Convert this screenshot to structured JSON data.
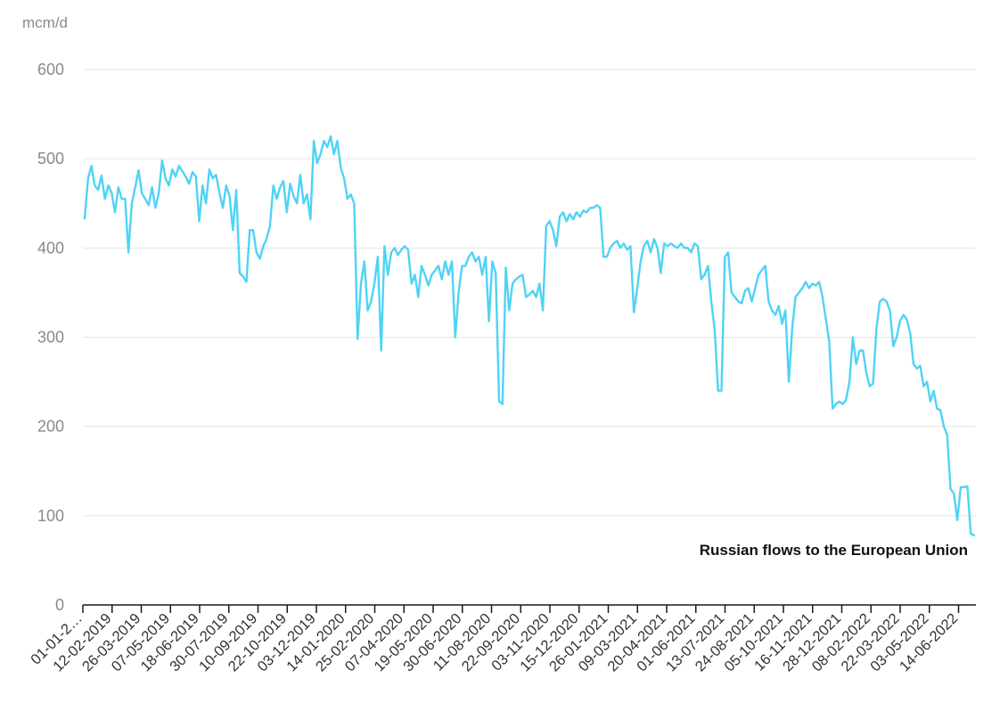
{
  "chart_data": {
    "type": "line",
    "ylabel": "mcm/d",
    "ylim": [
      0,
      600
    ],
    "yticks": [
      0,
      100,
      200,
      300,
      400,
      500,
      600
    ],
    "xticks": [
      "01-01-2…",
      "12-02-2019",
      "26-03-2019",
      "07-05-2019",
      "18-06-2019",
      "30-07-2019",
      "10-09-2019",
      "22-10-2019",
      "03-12-2019",
      "14-01-2020",
      "25-02-2020",
      "07-04-2020",
      "19-05-2020",
      "30-06-2020",
      "11-08-2020",
      "22-09-2020",
      "03-11-2020",
      "15-12-2020",
      "26-01-2021",
      "09-03-2021",
      "20-04-2021",
      "01-06-2021",
      "13-07-2021",
      "24-08-2021",
      "05-10-2021",
      "16-11-2021",
      "28-12-2021",
      "08-02-2022",
      "22-03-2022",
      "03-05-2022",
      "14-06-2022"
    ],
    "grid": true,
    "line_color": "#4fd3f5",
    "series": [
      {
        "name": "Russian flows to the European Union",
        "x_start": "2019-01-01",
        "x_end": "2022-07-25",
        "values": [
          433,
          478,
          492,
          470,
          465,
          481,
          455,
          470,
          462,
          440,
          468,
          455,
          455,
          395,
          450,
          468,
          487,
          461,
          455,
          448,
          468,
          445,
          462,
          498,
          478,
          470,
          488,
          480,
          492,
          486,
          480,
          472,
          485,
          480,
          430,
          470,
          450,
          488,
          478,
          482,
          462,
          445,
          470,
          458,
          420,
          465,
          372,
          368,
          362,
          420,
          420,
          395,
          388,
          402,
          410,
          425,
          470,
          455,
          468,
          475,
          440,
          472,
          458,
          450,
          482,
          450,
          460,
          432,
          520,
          495,
          505,
          520,
          513,
          525,
          505,
          520,
          490,
          478,
          455,
          460,
          450,
          298,
          360,
          385,
          330,
          340,
          360,
          390,
          285,
          402,
          370,
          395,
          400,
          392,
          398,
          402,
          398,
          360,
          370,
          345,
          380,
          370,
          358,
          370,
          375,
          380,
          365,
          385,
          370,
          385,
          300,
          350,
          380,
          380,
          390,
          395,
          385,
          390,
          370,
          390,
          318,
          385,
          372,
          228,
          225,
          378,
          330,
          360,
          365,
          368,
          370,
          345,
          348,
          352,
          345,
          360,
          330,
          425,
          430,
          420,
          402,
          435,
          440,
          430,
          438,
          432,
          440,
          435,
          442,
          440,
          445,
          445,
          448,
          445,
          390,
          390,
          400,
          405,
          408,
          400,
          405,
          398,
          402,
          328,
          355,
          385,
          402,
          408,
          395,
          410,
          400,
          372,
          405,
          402,
          405,
          402,
          400,
          405,
          400,
          400,
          395,
          405,
          402,
          365,
          370,
          380,
          340,
          308,
          240,
          240,
          390,
          395,
          350,
          345,
          340,
          338,
          352,
          355,
          340,
          355,
          370,
          375,
          380,
          340,
          330,
          325,
          335,
          315,
          330,
          250,
          310,
          345,
          350,
          355,
          362,
          355,
          360,
          358,
          362,
          345,
          320,
          295,
          220,
          225,
          228,
          225,
          230,
          250,
          300,
          270,
          285,
          285,
          260,
          245,
          248,
          310,
          340,
          343,
          340,
          330,
          290,
          300,
          318,
          325,
          320,
          305,
          270,
          265,
          268,
          245,
          250,
          228,
          240,
          220,
          218,
          200,
          190,
          130,
          125,
          95,
          132,
          132,
          133,
          80,
          78
        ]
      }
    ]
  }
}
